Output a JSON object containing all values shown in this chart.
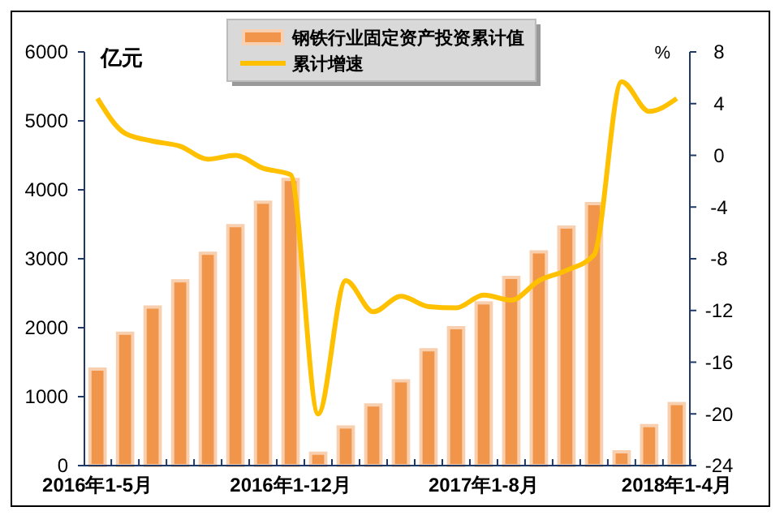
{
  "chart_data": {
    "type": "bar",
    "categories": [
      "2016年1-5月",
      null,
      null,
      null,
      null,
      null,
      null,
      "2016年1-12月",
      null,
      null,
      null,
      null,
      null,
      null,
      "2017年1-8月",
      null,
      null,
      null,
      null,
      null,
      null,
      "2018年1-4月"
    ],
    "series": [
      {
        "name": "钢铁行业固定资产投资累计值",
        "color": "#f0954a",
        "values": [
          1400,
          1920,
          2300,
          2680,
          3080,
          3480,
          3820,
          4150,
          180,
          560,
          880,
          1230,
          1680,
          2000,
          2360,
          2730,
          3100,
          3460,
          3800,
          200,
          580,
          900
        ]
      },
      {
        "name": "累计增速",
        "type": "line",
        "axis": "y2",
        "color": "#ffc000",
        "values": [
          4.4,
          1.7,
          1.1,
          0.7,
          -0.3,
          0,
          -1,
          -1.5,
          -20,
          -9.7,
          -12.1,
          -10.9,
          -11.7,
          -11.8,
          -10.8,
          -11.2,
          -9.7,
          -8.9,
          -7.7,
          5.7,
          3.4,
          4.4
        ]
      }
    ],
    "ylabel": "亿元",
    "y2label": "%",
    "ylim": [
      0,
      6000
    ],
    "yticks": [
      0,
      1000,
      2000,
      3000,
      4000,
      5000,
      6000
    ],
    "y2lim": [
      -24,
      8
    ],
    "y2ticks": [
      -24,
      -20,
      -16,
      -12,
      -8,
      -4,
      0,
      4,
      8
    ],
    "grid": false,
    "legend": "top",
    "marker": "none",
    "line_style": "solid"
  }
}
